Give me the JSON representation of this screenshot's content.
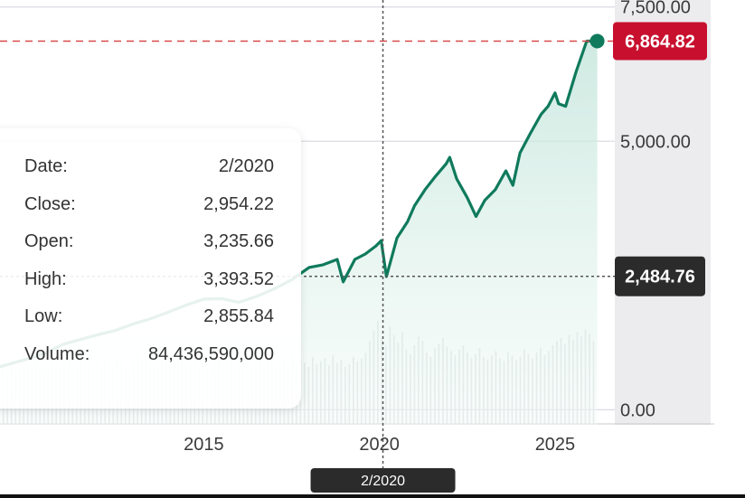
{
  "chart_data": {
    "type": "area",
    "title": "",
    "xlabel": "",
    "ylabel": "",
    "y_axis_position": "right",
    "y_ticks": [
      7500,
      5000,
      0
    ],
    "y_tick_labels": [
      "7,500.00",
      "5,000.00",
      "0.00"
    ],
    "x_ticks": [
      2015,
      2020,
      2025
    ],
    "x_tick_labels": [
      "2015",
      "2020",
      "2025"
    ],
    "xlim": [
      2009.2,
      2026.7
    ],
    "ylim": [
      -280,
      7630
    ],
    "last_value": 6864.82,
    "last_value_label": "6,864.82",
    "crosshair": {
      "x": 2020.1,
      "x_label": "2/2020",
      "y": 2484.76,
      "y_label": "2,484.76"
    },
    "series": [
      {
        "x": [
          2009.2,
          2010.0,
          2010.5,
          2011.0,
          2011.5,
          2012.0,
          2012.5,
          2013.0,
          2013.5,
          2014.0,
          2014.5,
          2015.0,
          2015.5,
          2016.0,
          2016.5,
          2017.0,
          2017.5,
          2018.0,
          2018.4,
          2018.8,
          2018.97,
          2019.3,
          2019.6,
          2019.9,
          2020.05,
          2020.2,
          2020.5,
          2020.8,
          2021.0,
          2021.3,
          2021.6,
          2021.9,
          2022.0,
          2022.2,
          2022.5,
          2022.75,
          2023.0,
          2023.3,
          2023.6,
          2023.8,
          2024.0,
          2024.3,
          2024.6,
          2024.8,
          2025.0,
          2025.1,
          2025.3,
          2025.6,
          2025.9,
          2026.2
        ],
        "y": [
          800,
          950,
          1060,
          1220,
          1310,
          1400,
          1480,
          1600,
          1700,
          1820,
          1950,
          2060,
          2070,
          2000,
          2110,
          2250,
          2420,
          2650,
          2700,
          2800,
          2380,
          2800,
          2900,
          3050,
          3150,
          2480,
          3200,
          3500,
          3800,
          4100,
          4350,
          4580,
          4700,
          4300,
          3950,
          3600,
          3900,
          4100,
          4450,
          4180,
          4780,
          5150,
          5500,
          5650,
          5900,
          5700,
          5650,
          6300,
          6864.82,
          6870
        ]
      }
    ],
    "volume": {
      "x_start": 2009.3,
      "x_end": 2026.1,
      "values": [
        43,
        40,
        46,
        38,
        44,
        50,
        41,
        39,
        45,
        48,
        42,
        37,
        44,
        47,
        40,
        43,
        49,
        41,
        38,
        45,
        42,
        46,
        40,
        44,
        39,
        47,
        43,
        41,
        48,
        45,
        40,
        38,
        44,
        49,
        42,
        46,
        41,
        43,
        40,
        47,
        44,
        39,
        45,
        42,
        48,
        41,
        43,
        46,
        40,
        44,
        42,
        38,
        45,
        47,
        41,
        43,
        44,
        40,
        46,
        42,
        48,
        39,
        44,
        45,
        41,
        43,
        47,
        40,
        42,
        46,
        44,
        49,
        41,
        45,
        43,
        40,
        47,
        42,
        44,
        46,
        41,
        48,
        43,
        45,
        40,
        42,
        47,
        44,
        46,
        50,
        58,
        65,
        72,
        60,
        55,
        68,
        62,
        57,
        64,
        52,
        49,
        55,
        61,
        58,
        50,
        47,
        53,
        56,
        60,
        54,
        51,
        48,
        52,
        55,
        50,
        46,
        49,
        53,
        47,
        45,
        48,
        51,
        46,
        44,
        50,
        48,
        45,
        47,
        52,
        49,
        46,
        50,
        53,
        48,
        51,
        55,
        58,
        60,
        56,
        62,
        59,
        64,
        61,
        66,
        63,
        58
      ]
    }
  },
  "tooltip": {
    "rows": [
      {
        "label": "Date:",
        "value": "2/2020"
      },
      {
        "label": "Close:",
        "value": "2,954.22"
      },
      {
        "label": "Open:",
        "value": "3,235.66"
      },
      {
        "label": "High:",
        "value": "3,393.52"
      },
      {
        "label": "Low:",
        "value": "2,855.84"
      },
      {
        "label": "Volume:",
        "value": "84,436,590,000"
      }
    ]
  },
  "colors": {
    "line": "#0f7a5c",
    "area_top": "#bfe3d8",
    "area_bottom": "#f2faf7",
    "last_badge": "#c8102e",
    "crosshair_badge": "#2b2b2b",
    "reference_line": "#d94a4a",
    "volume_bar": "#cfd4d7"
  }
}
